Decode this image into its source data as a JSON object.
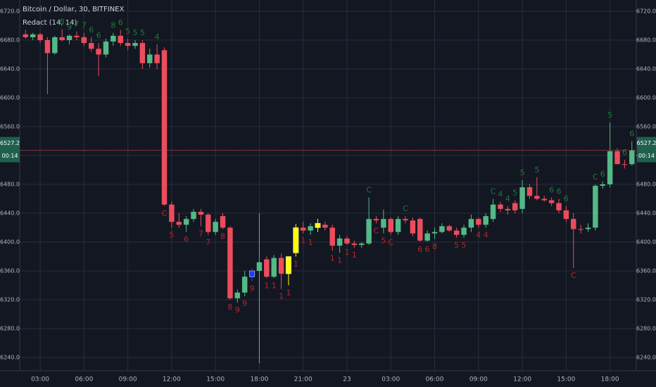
{
  "chart_data": {
    "type": "candlestick",
    "title": "Bitcoin / Dollar, 30, BITFINEX",
    "subtitle": "Redact (14, 14)",
    "x": [
      2,
      2.5,
      3,
      3.5,
      4,
      4.5,
      5,
      5.5,
      6,
      6.5,
      7,
      7.5,
      8,
      8.5,
      9,
      9.5,
      10,
      10.5,
      11,
      11.5,
      12,
      12.5,
      13,
      13.5,
      14,
      14.5,
      15,
      15.5,
      16,
      16.5,
      17,
      17.5,
      18,
      18.5,
      19,
      19.5,
      20,
      20.5,
      21,
      21.5,
      22,
      22.5,
      23,
      23.5,
      24,
      24.5,
      25,
      25.5,
      26,
      26.5,
      27,
      27.5,
      28,
      28.5,
      29,
      29.5,
      30,
      30.5,
      31,
      31.5,
      32,
      32.5,
      33,
      33.5,
      34,
      34.5,
      35,
      35.5,
      36,
      36.5,
      37,
      37.5,
      38,
      38.5,
      39,
      39.5,
      40,
      40.5,
      41,
      41.5,
      42,
      42.5,
      43,
      43.5
    ],
    "open": [
      6688,
      6684,
      6688,
      6680,
      6662,
      6684,
      6680,
      6686,
      6684,
      6676,
      6668,
      6660,
      6678,
      6686,
      6676,
      6672,
      6676,
      6648,
      6660,
      6666,
      6452,
      6428,
      6424,
      6432,
      6442,
      6438,
      6414,
      6436,
      6420,
      6322,
      6330,
      6352,
      6360,
      6376,
      6352,
      6378,
      6356,
      6385,
      6420,
      6416,
      6420,
      6424,
      6420,
      6395,
      6405,
      6398,
      6396,
      6398,
      6432,
      6420,
      6432,
      6414,
      6432,
      6430,
      6432,
      6402,
      6412,
      6414,
      6422,
      6416,
      6410,
      6420,
      6432,
      6424,
      6432,
      6452,
      6446,
      6454,
      6446,
      6476,
      6464,
      6460,
      6458,
      6454,
      6444,
      6432,
      6418,
      6418,
      6420,
      6478,
      6480,
      6526,
      6508,
      6508
    ],
    "high": [
      6694,
      6690,
      6690,
      6684,
      6686,
      6695,
      6688,
      6692,
      6690,
      6684,
      6676,
      6682,
      6690,
      6694,
      6682,
      6680,
      6680,
      6668,
      6674,
      6670,
      6456,
      6440,
      6436,
      6446,
      6446,
      6440,
      6432,
      6440,
      6422,
      6334,
      6360,
      6364,
      6440,
      6380,
      6382,
      6384,
      6380,
      6425,
      6428,
      6426,
      6432,
      6428,
      6424,
      6410,
      6408,
      6402,
      6400,
      6462,
      6436,
      6445,
      6434,
      6436,
      6436,
      6434,
      6434,
      6416,
      6420,
      6426,
      6424,
      6420,
      6424,
      6438,
      6434,
      6440,
      6460,
      6456,
      6450,
      6458,
      6486,
      6480,
      6490,
      6464,
      6462,
      6460,
      6450,
      6440,
      6424,
      6426,
      6480,
      6484,
      6566,
      6530,
      6514,
      6540
    ],
    "low": [
      6682,
      6680,
      6676,
      6605,
      6660,
      6678,
      6674,
      6680,
      6672,
      6664,
      6630,
      6656,
      6672,
      6672,
      6666,
      6668,
      6640,
      6642,
      6640,
      6450,
      6420,
      6420,
      6414,
      6428,
      6422,
      6410,
      6410,
      6418,
      6320,
      6316,
      6325,
      6346,
      6232,
      6350,
      6350,
      6335,
      6340,
      6380,
      6412,
      6410,
      6414,
      6416,
      6388,
      6385,
      6396,
      6392,
      6392,
      6396,
      6426,
      6412,
      6410,
      6410,
      6426,
      6408,
      6400,
      6400,
      6404,
      6412,
      6414,
      6406,
      6406,
      6414,
      6420,
      6420,
      6428,
      6442,
      6438,
      6440,
      6440,
      6460,
      6458,
      6456,
      6450,
      6440,
      6428,
      6364,
      6412,
      6414,
      6416,
      6474,
      6476,
      6508,
      6502,
      6506
    ],
    "close": [
      6684,
      6688,
      6680,
      6662,
      6684,
      6680,
      6686,
      6684,
      6676,
      6668,
      6660,
      6678,
      6686,
      6676,
      6672,
      6676,
      6648,
      6660,
      6648,
      6452,
      6428,
      6424,
      6432,
      6442,
      6438,
      6414,
      6428,
      6420,
      6322,
      6330,
      6352,
      6360,
      6372,
      6352,
      6378,
      6356,
      6380,
      6420,
      6416,
      6422,
      6426,
      6420,
      6395,
      6405,
      6398,
      6396,
      6398,
      6432,
      6430,
      6432,
      6414,
      6432,
      6430,
      6412,
      6402,
      6412,
      6414,
      6422,
      6416,
      6410,
      6420,
      6432,
      6424,
      6436,
      6452,
      6446,
      6444,
      6444,
      6476,
      6464,
      6460,
      6458,
      6454,
      6444,
      6432,
      6418,
      6418,
      6420,
      6478,
      6480,
      6526,
      6508,
      6508,
      6527
    ],
    "up_color": "#53b987",
    "down_color": "#eb4d5c",
    "special": [
      {
        "x": 17.5,
        "color": "#1e3cff"
      },
      {
        "x": 20,
        "color": "#ffff00"
      },
      {
        "x": 20.5,
        "color": "#ffff00"
      },
      {
        "x": 22,
        "color": "#ffff00"
      }
    ],
    "annotation_colors": {
      "above": "#1d7a34",
      "below": "#b3262d"
    },
    "annotations": [
      {
        "text": "8",
        "x": 4.5,
        "position": "above"
      },
      {
        "text": "9",
        "x": 5,
        "position": "above"
      },
      {
        "text": "7",
        "x": 5.5,
        "position": "above"
      },
      {
        "text": "7",
        "x": 6,
        "position": "above"
      },
      {
        "text": "6",
        "x": 6.5,
        "position": "above"
      },
      {
        "text": "6",
        "x": 7,
        "position": "above"
      },
      {
        "text": "8",
        "x": 8,
        "position": "above"
      },
      {
        "text": "6",
        "x": 8.5,
        "position": "above"
      },
      {
        "text": "5",
        "x": 9,
        "position": "above"
      },
      {
        "text": "5",
        "x": 9.5,
        "position": "above"
      },
      {
        "text": "5",
        "x": 10,
        "position": "above"
      },
      {
        "text": "4",
        "x": 11,
        "position": "above"
      },
      {
        "text": "C",
        "x": 11.5,
        "position": "below"
      },
      {
        "text": "5",
        "x": 12,
        "position": "below"
      },
      {
        "text": "6",
        "x": 13,
        "position": "below"
      },
      {
        "text": "7",
        "x": 14,
        "position": "below"
      },
      {
        "text": "7",
        "x": 14.5,
        "position": "below"
      },
      {
        "text": "8",
        "x": 15.5,
        "position": "below"
      },
      {
        "text": "8",
        "x": 16,
        "position": "below"
      },
      {
        "text": "9",
        "x": 16.5,
        "position": "below"
      },
      {
        "text": "9",
        "x": 17,
        "position": "below"
      },
      {
        "text": "9",
        "x": 17.5,
        "position": "below"
      },
      {
        "text": "1",
        "x": 18.5,
        "position": "below"
      },
      {
        "text": "1",
        "x": 19,
        "position": "below"
      },
      {
        "text": "1",
        "x": 19.5,
        "position": "below"
      },
      {
        "text": "1",
        "x": 20,
        "position": "below"
      },
      {
        "text": "1",
        "x": 20.5,
        "position": "below"
      },
      {
        "text": "1",
        "x": 21,
        "position": "below"
      },
      {
        "text": "1",
        "x": 21.5,
        "position": "below"
      },
      {
        "text": "1",
        "x": 23,
        "position": "below"
      },
      {
        "text": "1",
        "x": 23.5,
        "position": "below"
      },
      {
        "text": "1",
        "x": 24,
        "position": "below"
      },
      {
        "text": "1",
        "x": 24.5,
        "position": "below"
      },
      {
        "text": "C",
        "x": 25.5,
        "position": "above"
      },
      {
        "text": "C",
        "x": 26,
        "position": "below"
      },
      {
        "text": "5",
        "x": 26.5,
        "position": "below"
      },
      {
        "text": "C",
        "x": 27,
        "position": "below"
      },
      {
        "text": "C",
        "x": 28,
        "position": "above"
      },
      {
        "text": "6",
        "x": 29,
        "position": "below"
      },
      {
        "text": "6",
        "x": 29.5,
        "position": "below"
      },
      {
        "text": "8",
        "x": 30,
        "position": "below"
      },
      {
        "text": "5",
        "x": 31.5,
        "position": "below"
      },
      {
        "text": "5",
        "x": 32,
        "position": "below"
      },
      {
        "text": "4",
        "x": 33,
        "position": "below"
      },
      {
        "text": "4",
        "x": 33.5,
        "position": "below"
      },
      {
        "text": "C",
        "x": 34,
        "position": "above"
      },
      {
        "text": "4",
        "x": 34.5,
        "position": "above"
      },
      {
        "text": "4",
        "x": 35,
        "position": "above"
      },
      {
        "text": "5",
        "x": 35.5,
        "position": "above"
      },
      {
        "text": "5",
        "x": 36,
        "position": "above"
      },
      {
        "text": "5",
        "x": 37,
        "position": "above"
      },
      {
        "text": "6",
        "x": 38,
        "position": "above"
      },
      {
        "text": "6",
        "x": 38.5,
        "position": "above"
      },
      {
        "text": "6",
        "x": 39,
        "position": "above"
      },
      {
        "text": "C",
        "x": 39.5,
        "position": "below"
      },
      {
        "text": "C",
        "x": 41,
        "position": "above"
      },
      {
        "text": "6",
        "x": 41.5,
        "position": "above"
      },
      {
        "text": "5",
        "x": 42,
        "position": "above"
      },
      {
        "text": "6",
        "x": 43,
        "position": "above"
      },
      {
        "text": "6",
        "x": 43.5,
        "position": "above"
      }
    ],
    "last_price": 6527.2,
    "countdown": "00:14",
    "last_price_color": "#eb4d5c",
    "xlim": [
      1.6,
      43.8
    ],
    "ylim": [
      6221.5,
      6735.6
    ],
    "xticks": [
      {
        "value": 3,
        "label": "03:00"
      },
      {
        "value": 6,
        "label": "06:00"
      },
      {
        "value": 9,
        "label": "09:00"
      },
      {
        "value": 12,
        "label": "12:00"
      },
      {
        "value": 15,
        "label": "15:00"
      },
      {
        "value": 18,
        "label": "18:00"
      },
      {
        "value": 21,
        "label": "21:00"
      },
      {
        "value": 24,
        "label": "23"
      },
      {
        "value": 27,
        "label": "03:00"
      },
      {
        "value": 30,
        "label": "06:00"
      },
      {
        "value": 33,
        "label": "09:00"
      },
      {
        "value": 36,
        "label": "12:00"
      },
      {
        "value": 39,
        "label": "15:00"
      },
      {
        "value": 42,
        "label": "18:00"
      }
    ],
    "yticks": [
      {
        "value": 6240,
        "label": "6240.0"
      },
      {
        "value": 6280,
        "label": "6280.0"
      },
      {
        "value": 6320,
        "label": "6320.0"
      },
      {
        "value": 6360,
        "label": "6360.0"
      },
      {
        "value": 6400,
        "label": "6400.0"
      },
      {
        "value": 6440,
        "label": "6440.0"
      },
      {
        "value": 6480,
        "label": "6480.0"
      },
      {
        "value": 6520,
        "label": "6520.0"
      },
      {
        "value": 6560,
        "label": "6560.0"
      },
      {
        "value": 6600,
        "label": "6600.0"
      },
      {
        "value": 6640,
        "label": "6640.0"
      },
      {
        "value": 6680,
        "label": "6680.0"
      },
      {
        "value": 6720,
        "label": "6720.0"
      }
    ],
    "grid": true
  }
}
